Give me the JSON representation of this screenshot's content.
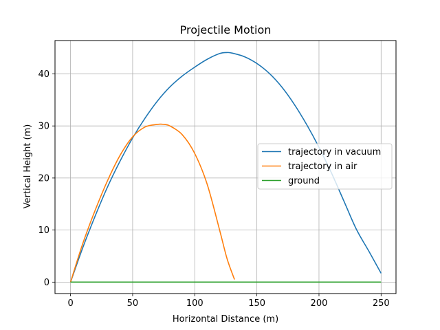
{
  "chart_data": {
    "type": "line",
    "title": "Projectile Motion",
    "xlabel": "Horizontal Distance (m)",
    "ylabel": "Vertical Height (m)",
    "xlim": [
      -12.5,
      262
    ],
    "ylim": [
      -2.2,
      46.4
    ],
    "xticks": [
      0,
      50,
      100,
      150,
      200,
      250
    ],
    "yticks": [
      0,
      10,
      20,
      30,
      40
    ],
    "grid": true,
    "legend_position": "center-right",
    "series": [
      {
        "name": "trajectory in vacuum",
        "color": "#1f77b4",
        "x": [
          0,
          10,
          20,
          30,
          40,
          50,
          60,
          70,
          80,
          90,
          100,
          110,
          120,
          126,
          130,
          140,
          150,
          160,
          170,
          180,
          190,
          200,
          210,
          220,
          230,
          240,
          250
        ],
        "y": [
          0,
          6.7,
          12.8,
          18.4,
          23.3,
          27.7,
          31.5,
          34.8,
          37.5,
          39.6,
          41.3,
          42.8,
          43.9,
          44.1,
          44.0,
          43.3,
          42.0,
          40.1,
          37.5,
          34.2,
          30.3,
          25.9,
          21.0,
          15.6,
          10.2,
          6.0,
          1.7
        ]
      },
      {
        "name": "trajectory in air",
        "color": "#ff7f0e",
        "x": [
          0,
          10,
          20,
          30,
          40,
          50,
          60,
          70,
          75,
          80,
          90,
          100,
          110,
          120,
          126,
          132
        ],
        "y": [
          0,
          7.5,
          13.9,
          19.6,
          24.4,
          27.9,
          29.8,
          30.3,
          30.3,
          30.0,
          28.3,
          24.7,
          18.8,
          10.0,
          4.5,
          0.5
        ]
      },
      {
        "name": "ground",
        "color": "#2ca02c",
        "x": [
          0,
          250
        ],
        "y": [
          0,
          0
        ]
      }
    ]
  }
}
